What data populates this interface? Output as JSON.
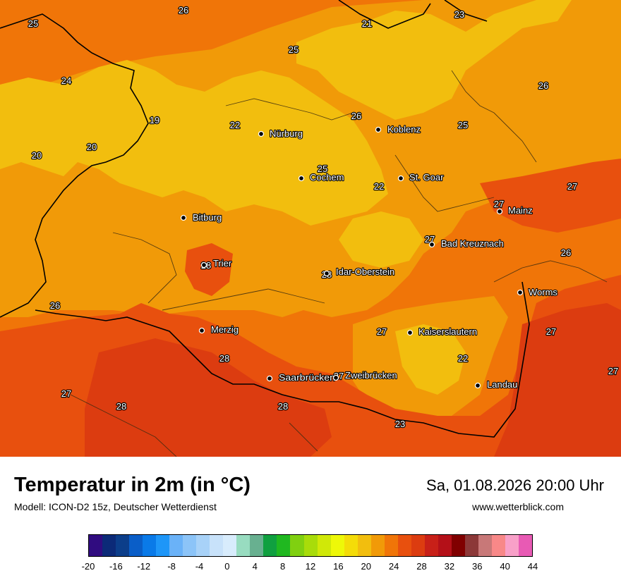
{
  "title": "Temperatur in 2m (in °C)",
  "subtitle": "Modell: ICON-D2 15z, Deutscher Wetterdienst",
  "datetime": "Sa, 01.08.2026 20:00 Uhr",
  "website": "www.wetterblick.com",
  "colors": {
    "yellow": "#f2be0e",
    "orange_light": "#f19a08",
    "orange": "#f07508",
    "red_orange": "#e8500e",
    "red": "#dc3c10",
    "border_dark": "#000000",
    "boundary_dark": "#3a2a10"
  },
  "cities": [
    {
      "name": "Nürburg"
    },
    {
      "name": "Koblenz"
    },
    {
      "name": "Cochem"
    },
    {
      "name": "St. Goar"
    },
    {
      "name": "Mainz"
    },
    {
      "name": "Bitburg"
    },
    {
      "name": "Bad Kreuznach"
    },
    {
      "name": "Trier"
    },
    {
      "name": "Idar-Oberstein"
    },
    {
      "name": "Worms"
    },
    {
      "name": "Merzig"
    },
    {
      "name": "Kaiserslautern"
    },
    {
      "name": "Saarbrücken"
    },
    {
      "name": "Zweibrücken"
    },
    {
      "name": "Landau"
    }
  ],
  "temps": [
    "26",
    "23",
    "25",
    "21",
    "25",
    "24",
    "26",
    "26",
    "25",
    "19",
    "22",
    "20",
    "20",
    "25",
    "22",
    "27",
    "27",
    "27",
    "26",
    "28",
    "28",
    "26",
    "27",
    "27",
    "22",
    "27",
    "27",
    "28",
    "27",
    "28",
    "23",
    "28"
  ],
  "legend": {
    "colors": [
      "#300c80",
      "#0c2a78",
      "#0c3e8a",
      "#0a5ec8",
      "#0a7ae8",
      "#1e96f8",
      "#6ab2f8",
      "#8cc4f8",
      "#a8d2f8",
      "#c8e2fa",
      "#d8ecfc",
      "#98dcc0",
      "#68b090",
      "#10a040",
      "#20b820",
      "#80d010",
      "#a8dc0a",
      "#d0e808",
      "#eef808",
      "#f4dc08",
      "#f2be0e",
      "#f19a08",
      "#f07508",
      "#e8500e",
      "#dc3c10",
      "#c82018",
      "#b41018",
      "#800000",
      "#8c3838",
      "#c87878",
      "#f88888",
      "#f8a0c8",
      "#e85ab4"
    ],
    "tick_labels": [
      "-20",
      "-16",
      "-12",
      "-8",
      "-4",
      "0",
      "4",
      "8",
      "12",
      "16",
      "20",
      "24",
      "28",
      "32",
      "36",
      "40",
      "44"
    ]
  }
}
